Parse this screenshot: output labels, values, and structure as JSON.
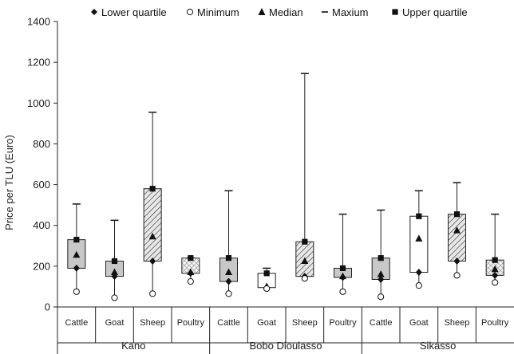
{
  "chart_data": {
    "type": "box",
    "ylabel": "Price per TLU (Euro)",
    "xlabel": "",
    "ylim": [
      0,
      1400
    ],
    "yticks": [
      0,
      200,
      400,
      600,
      800,
      1000,
      1200,
      1400
    ],
    "grid": false,
    "legend_position": "top",
    "legend": [
      {
        "key": "lower_quartile",
        "label": "Lower quartile",
        "marker": "diamond"
      },
      {
        "key": "minimum",
        "label": "Minimum",
        "marker": "circle-open"
      },
      {
        "key": "median",
        "label": "Median",
        "marker": "triangle"
      },
      {
        "key": "maximum",
        "label": "Maxium",
        "marker": "dash"
      },
      {
        "key": "upper_quartile",
        "label": "Upper quartile",
        "marker": "square"
      }
    ],
    "groups": [
      {
        "name": "Kano",
        "boxes": [
          {
            "category": "Cattle",
            "min": 75,
            "lower_quartile": 190,
            "median": 255,
            "upper_quartile": 330,
            "max": 505,
            "fill": "gray"
          },
          {
            "category": "Goat",
            "min": 45,
            "lower_quartile": 150,
            "median": 170,
            "upper_quartile": 225,
            "max": 425,
            "fill": "gray"
          },
          {
            "category": "Sheep",
            "min": 65,
            "lower_quartile": 225,
            "median": 345,
            "upper_quartile": 580,
            "max": 955,
            "fill": "hatch"
          },
          {
            "category": "Poultry",
            "min": 125,
            "lower_quartile": 165,
            "median": 170,
            "upper_quartile": 240,
            "max": 240,
            "fill": "cross"
          }
        ]
      },
      {
        "name": "Bobo Dioulasso",
        "boxes": [
          {
            "category": "Cattle",
            "min": 65,
            "lower_quartile": 125,
            "median": 170,
            "upper_quartile": 240,
            "max": 570,
            "fill": "gray"
          },
          {
            "category": "Goat",
            "min": 90,
            "lower_quartile": 95,
            "median": 100,
            "upper_quartile": 165,
            "max": 190,
            "fill": "white"
          },
          {
            "category": "Sheep",
            "min": 140,
            "lower_quartile": 150,
            "median": 225,
            "upper_quartile": 320,
            "max": 1145,
            "fill": "hatch"
          },
          {
            "category": "Poultry",
            "min": 75,
            "lower_quartile": 145,
            "median": 150,
            "upper_quartile": 190,
            "max": 455,
            "fill": "gray"
          }
        ]
      },
      {
        "name": "Sikasso",
        "boxes": [
          {
            "category": "Cattle",
            "min": 50,
            "lower_quartile": 135,
            "median": 160,
            "upper_quartile": 240,
            "max": 475,
            "fill": "gray"
          },
          {
            "category": "Goat",
            "min": 105,
            "lower_quartile": 170,
            "median": 335,
            "upper_quartile": 445,
            "max": 570,
            "fill": "white"
          },
          {
            "category": "Sheep",
            "min": 155,
            "lower_quartile": 225,
            "median": 375,
            "upper_quartile": 455,
            "max": 610,
            "fill": "hatch"
          },
          {
            "category": "Poultry",
            "min": 120,
            "lower_quartile": 155,
            "median": 185,
            "upper_quartile": 230,
            "max": 455,
            "fill": "cross"
          }
        ]
      }
    ],
    "colors": {
      "box_gray": "#c8c8c8",
      "box_white": "#ffffff",
      "stroke": "#222222"
    }
  }
}
